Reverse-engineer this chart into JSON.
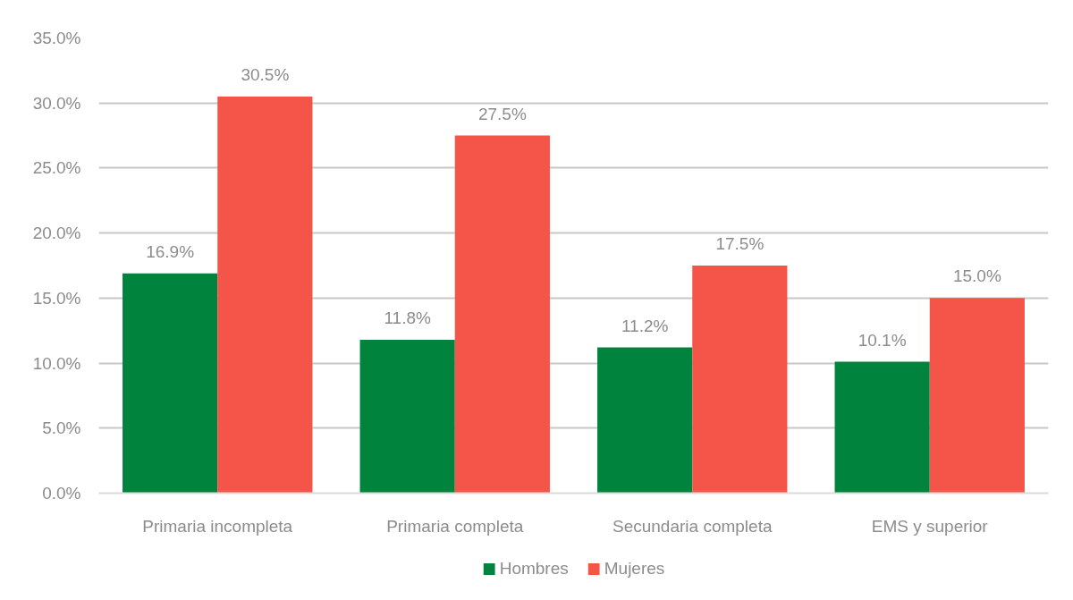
{
  "chart_data": {
    "type": "bar",
    "categories": [
      "Primaria incompleta",
      "Primaria completa",
      "Secundaria completa",
      "EMS y superior"
    ],
    "series": [
      {
        "name": "Hombres",
        "color": "#00843d",
        "values": [
          16.9,
          11.8,
          11.2,
          10.1
        ],
        "value_labels": [
          "16.9%",
          "11.8%",
          "11.2%",
          "10.1%"
        ]
      },
      {
        "name": "Mujeres",
        "color": "#f55548",
        "values": [
          30.5,
          27.5,
          17.5,
          15.0
        ],
        "value_labels": [
          "30.5%",
          "27.5%",
          "17.5%",
          "15.0%"
        ]
      }
    ],
    "ylim": [
      0,
      35
    ],
    "yticks": [
      {
        "value": 0,
        "label": "0.0%"
      },
      {
        "value": 5,
        "label": "5.0%"
      },
      {
        "value": 10,
        "label": "10.0%"
      },
      {
        "value": 15,
        "label": "15.0%"
      },
      {
        "value": 20,
        "label": "20.0%"
      },
      {
        "value": 25,
        "label": "25.0%"
      },
      {
        "value": 30,
        "label": "30.0%"
      },
      {
        "value": 35,
        "label": "35.0%"
      }
    ],
    "grid": "y",
    "legend": "bottom"
  }
}
